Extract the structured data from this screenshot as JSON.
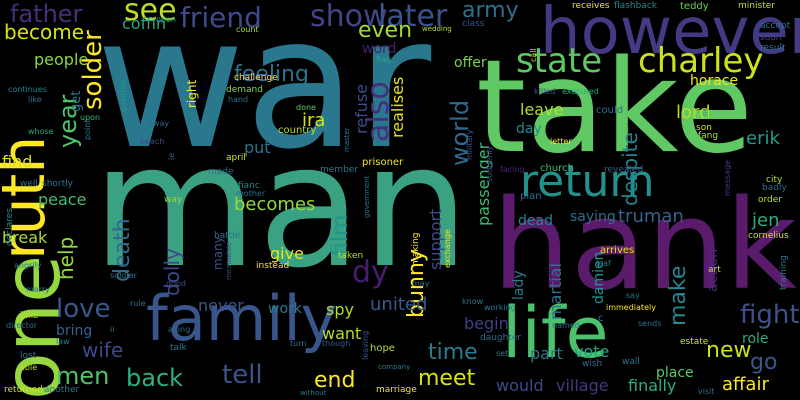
{
  "words": [
    {
      "text": "war",
      "color": "#2a788e"
    },
    {
      "text": "man",
      "color": "#3aa183"
    },
    {
      "text": "take",
      "color": "#60c963"
    },
    {
      "text": "hank",
      "color": "#5a1b6c"
    },
    {
      "text": "however",
      "color": "#443a83"
    },
    {
      "text": "family",
      "color": "#39568c"
    },
    {
      "text": "life",
      "color": "#4cc26c"
    },
    {
      "text": "return",
      "color": "#21918c"
    },
    {
      "text": "one",
      "color": "#95d840"
    },
    {
      "text": "ruth",
      "color": "#fde725"
    },
    {
      "text": "state",
      "color": "#5ec962"
    },
    {
      "text": "charley",
      "color": "#cde11d"
    },
    {
      "text": "show",
      "color": "#414487"
    },
    {
      "text": "later",
      "color": "#3b528b"
    },
    {
      "text": "friend",
      "color": "#3e4a89"
    },
    {
      "text": "see",
      "color": "#bddf26"
    },
    {
      "text": "father",
      "color": "#46307e"
    },
    {
      "text": "army",
      "color": "#2e6f8e"
    },
    {
      "text": "become",
      "color": "#d5e21a"
    },
    {
      "text": "coffin",
      "color": "#22a884"
    },
    {
      "text": "people",
      "color": "#8bd646"
    },
    {
      "text": "feeling",
      "color": "#2c728e"
    },
    {
      "text": "even",
      "color": "#a0da39"
    },
    {
      "text": "word",
      "color": "#481f70"
    },
    {
      "text": "also",
      "color": "#472d7b"
    },
    {
      "text": "world",
      "color": "#31688e"
    },
    {
      "text": "ira",
      "color": "#d2e21b"
    },
    {
      "text": "lord",
      "color": "#b8de29"
    },
    {
      "text": "horace",
      "color": "#f1e51d"
    },
    {
      "text": "offer",
      "color": "#7ad151"
    },
    {
      "text": "leave",
      "color": "#b5de2b"
    },
    {
      "text": "day",
      "color": "#228c8d"
    },
    {
      "text": "erik",
      "color": "#1f9e89"
    },
    {
      "text": "fight",
      "color": "#3b528b"
    },
    {
      "text": "new",
      "color": "#cae11f"
    },
    {
      "text": "go",
      "color": "#38588c"
    },
    {
      "text": "make",
      "color": "#24868e"
    },
    {
      "text": "jen",
      "color": "#29af7f"
    },
    {
      "text": "role",
      "color": "#26ad81"
    },
    {
      "text": "affair",
      "color": "#f8e621"
    },
    {
      "text": "place",
      "color": "#5cc863"
    },
    {
      "text": "love",
      "color": "#39568c"
    },
    {
      "text": "men",
      "color": "#4ec36b"
    },
    {
      "text": "back",
      "color": "#2db27d"
    },
    {
      "text": "tell",
      "color": "#3b528b"
    },
    {
      "text": "end",
      "color": "#fde725"
    },
    {
      "text": "meet",
      "color": "#d8e219"
    },
    {
      "text": "time",
      "color": "#287c8e"
    },
    {
      "text": "bunny",
      "color": "#fde725"
    },
    {
      "text": "wife",
      "color": "#3e4a89"
    },
    {
      "text": "death",
      "color": "#31688e"
    },
    {
      "text": "dolly",
      "color": "#3f4788"
    },
    {
      "text": "becomes",
      "color": "#95d840"
    },
    {
      "text": "film",
      "color": "#1f968b"
    },
    {
      "text": "dy",
      "color": "#481c6e"
    },
    {
      "text": "truman",
      "color": "#32648e"
    },
    {
      "text": "saying",
      "color": "#2e6e8e"
    },
    {
      "text": "dead",
      "color": "#25848e"
    },
    {
      "text": "united",
      "color": "#38598c"
    },
    {
      "text": "begin",
      "color": "#433e85"
    },
    {
      "text": "part",
      "color": "#2a778e"
    },
    {
      "text": "vote",
      "color": "#20a386"
    },
    {
      "text": "village",
      "color": "#453882"
    },
    {
      "text": "would",
      "color": "#3e4989"
    },
    {
      "text": "finally",
      "color": "#2ab07f"
    },
    {
      "text": "year",
      "color": "#4fc46a"
    },
    {
      "text": "help",
      "color": "#95d840"
    },
    {
      "text": "put",
      "color": "#2c728e"
    },
    {
      "text": "give",
      "color": "#eae51a"
    },
    {
      "text": "spy",
      "color": "#b2dd2d"
    },
    {
      "text": "want",
      "color": "#b8de29"
    },
    {
      "text": "never",
      "color": "#39568c"
    },
    {
      "text": "work",
      "color": "#29798e"
    },
    {
      "text": "peace",
      "color": "#40bd72"
    },
    {
      "text": "find",
      "color": "#ddde28"
    },
    {
      "text": "break",
      "color": "#aadc32"
    },
    {
      "text": "bring",
      "color": "#32648e"
    },
    {
      "text": "refuse",
      "color": "#3d4d8a"
    },
    {
      "text": "realises",
      "color": "#e7e419"
    },
    {
      "text": "passenger",
      "color": "#3dbc74"
    },
    {
      "text": "despite",
      "color": "#25848e"
    },
    {
      "text": "support",
      "color": "#3e4989"
    },
    {
      "text": "martial",
      "color": "#2d718e"
    },
    {
      "text": "lady",
      "color": "#2a788e"
    },
    {
      "text": "damien",
      "color": "#1f968b"
    },
    {
      "text": "action",
      "color": "#472c7a"
    },
    {
      "text": "solder",
      "color": "#fde725"
    },
    {
      "text": "get",
      "color": "#2a788e"
    },
    {
      "text": "wedding",
      "color": "#b5de2b"
    },
    {
      "text": "class",
      "color": "#3b528b"
    },
    {
      "text": "receives",
      "color": "#e3e418"
    },
    {
      "text": "flashback",
      "color": "#24868e"
    },
    {
      "text": "teddy",
      "color": "#6ccd5a"
    },
    {
      "text": "minister",
      "color": "#b8de29"
    },
    {
      "text": "accept",
      "color": "#2c728e"
    },
    {
      "text": "result",
      "color": "#2c718e"
    },
    {
      "text": "soon",
      "color": "#3f4788"
    },
    {
      "text": "open",
      "color": "#20a386"
    },
    {
      "text": "count",
      "color": "#b0dd2f"
    },
    {
      "text": "right",
      "color": "#fde725"
    },
    {
      "text": "demand",
      "color": "#84d44b"
    },
    {
      "text": "challenge",
      "color": "#fde725"
    },
    {
      "text": "hand",
      "color": "#2e6f8e"
    },
    {
      "text": "position",
      "color": "#1f9e89"
    },
    {
      "text": "continues",
      "color": "#25858e"
    },
    {
      "text": "like",
      "color": "#2d718e"
    },
    {
      "text": "upon",
      "color": "#3aba76"
    },
    {
      "text": "whose",
      "color": "#24aa83"
    },
    {
      "text": "point",
      "color": "#2a768e"
    },
    {
      "text": "away",
      "color": "#31678e"
    },
    {
      "text": "beach",
      "color": "#3e4a89"
    },
    {
      "text": "flag",
      "color": "#24aa83"
    },
    {
      "text": "killed",
      "color": "#3b528b"
    },
    {
      "text": "executed",
      "color": "#22a884"
    },
    {
      "text": "call",
      "color": "#d0e11c"
    },
    {
      "text": "could",
      "color": "#2a768e"
    },
    {
      "text": "letter",
      "color": "#fde725"
    },
    {
      "text": "church",
      "color": "#3aba76"
    },
    {
      "text": "son",
      "color": "#d2e21b"
    },
    {
      "text": "fang",
      "color": "#b2dd2d"
    },
    {
      "text": "sir",
      "color": "#20a386"
    },
    {
      "text": "done",
      "color": "#5ec962"
    },
    {
      "text": "country",
      "color": "#b8de29"
    },
    {
      "text": "master",
      "color": "#2a768e"
    },
    {
      "text": "military",
      "color": "#3b528b"
    },
    {
      "text": "suddenly",
      "color": "#3f4788"
    },
    {
      "text": "facing",
      "color": "#482576"
    },
    {
      "text": "revealed",
      "color": "#365c8d"
    },
    {
      "text": "message",
      "color": "#453882"
    },
    {
      "text": "city",
      "color": "#b8de29"
    },
    {
      "text": "badly",
      "color": "#31688e"
    },
    {
      "text": "order",
      "color": "#c0df25"
    },
    {
      "text": "cornelius",
      "color": "#d5e21a"
    },
    {
      "text": "training",
      "color": "#2a788e"
    },
    {
      "text": "art",
      "color": "#c2df23"
    },
    {
      "text": "april",
      "color": "#d0e11c"
    },
    {
      "text": "ie",
      "color": "#31688e"
    },
    {
      "text": "made",
      "color": "#2e6e8e"
    },
    {
      "text": "fianc",
      "color": "#24878e"
    },
    {
      "text": "mother",
      "color": "#2c718e"
    },
    {
      "text": "member",
      "color": "#2a788e"
    },
    {
      "text": "prisoner",
      "color": "#f1e51d"
    },
    {
      "text": "government",
      "color": "#2a788e"
    },
    {
      "text": "way",
      "color": "#9bd93c"
    },
    {
      "text": "battle",
      "color": "#2e6f8e"
    },
    {
      "text": "instead",
      "color": "#fde725"
    },
    {
      "text": "taken",
      "color": "#b5de2b"
    },
    {
      "text": "many",
      "color": "#3b528b"
    },
    {
      "text": "plan",
      "color": "#2c728e"
    },
    {
      "text": "arrives",
      "color": "#e5e419"
    },
    {
      "text": "leaf",
      "color": "#2a768e"
    },
    {
      "text": "making",
      "color": "#fde725"
    },
    {
      "text": "exchange",
      "color": "#f1e51d"
    },
    {
      "text": "may",
      "color": "#2e6f8e"
    },
    {
      "text": "declares",
      "color": "#24868e"
    },
    {
      "text": "well",
      "color": "#2c728e"
    },
    {
      "text": "shortly",
      "color": "#2a768e"
    },
    {
      "text": "angrily",
      "color": "#2c728e"
    },
    {
      "text": "soldier",
      "color": "#2a788e"
    },
    {
      "text": "good",
      "color": "#3b528b"
    },
    {
      "text": "meanwhile",
      "color": "#3e4989"
    },
    {
      "text": "rule",
      "color": "#2e6e8e"
    },
    {
      "text": "jake",
      "color": "#b8de29"
    },
    {
      "text": "marry",
      "color": "#2c728e"
    },
    {
      "text": "ii",
      "color": "#2a768e"
    },
    {
      "text": "director",
      "color": "#2e6f8e"
    },
    {
      "text": "law",
      "color": "#2a788e"
    },
    {
      "text": "along",
      "color": "#2e6f8e"
    },
    {
      "text": "talk",
      "color": "#2a768e"
    },
    {
      "text": "turn",
      "color": "#2c728e"
    },
    {
      "text": "though",
      "color": "#39568c"
    },
    {
      "text": "hope",
      "color": "#b5de2b"
    },
    {
      "text": "leaving",
      "color": "#3b528b"
    },
    {
      "text": "working",
      "color": "#2a788e"
    },
    {
      "text": "daughter",
      "color": "#2e6f8e"
    },
    {
      "text": "know",
      "color": "#2a768e"
    },
    {
      "text": "named",
      "color": "#2a788e"
    },
    {
      "text": "immediately",
      "color": "#fde725"
    },
    {
      "text": "say",
      "color": "#2a768e"
    },
    {
      "text": "sends",
      "color": "#2e6f8e"
    },
    {
      "text": "estate",
      "color": "#d2e21b"
    },
    {
      "text": "wall",
      "color": "#2a788e"
    },
    {
      "text": "visit",
      "color": "#2e6f8e"
    },
    {
      "text": "wish",
      "color": "#2c728e"
    },
    {
      "text": "set",
      "color": "#2a768e"
    },
    {
      "text": "lost",
      "color": "#2a788e"
    },
    {
      "text": "able",
      "color": "#b8de29"
    },
    {
      "text": "returned",
      "color": "#d0e11c"
    },
    {
      "text": "another",
      "color": "#2a788e"
    },
    {
      "text": "without",
      "color": "#2a768e"
    },
    {
      "text": "company",
      "color": "#2a788e"
    },
    {
      "text": "marriage",
      "color": "#f1e51d"
    },
    {
      "text": "c",
      "color": "#2a788e"
    }
  ]
}
